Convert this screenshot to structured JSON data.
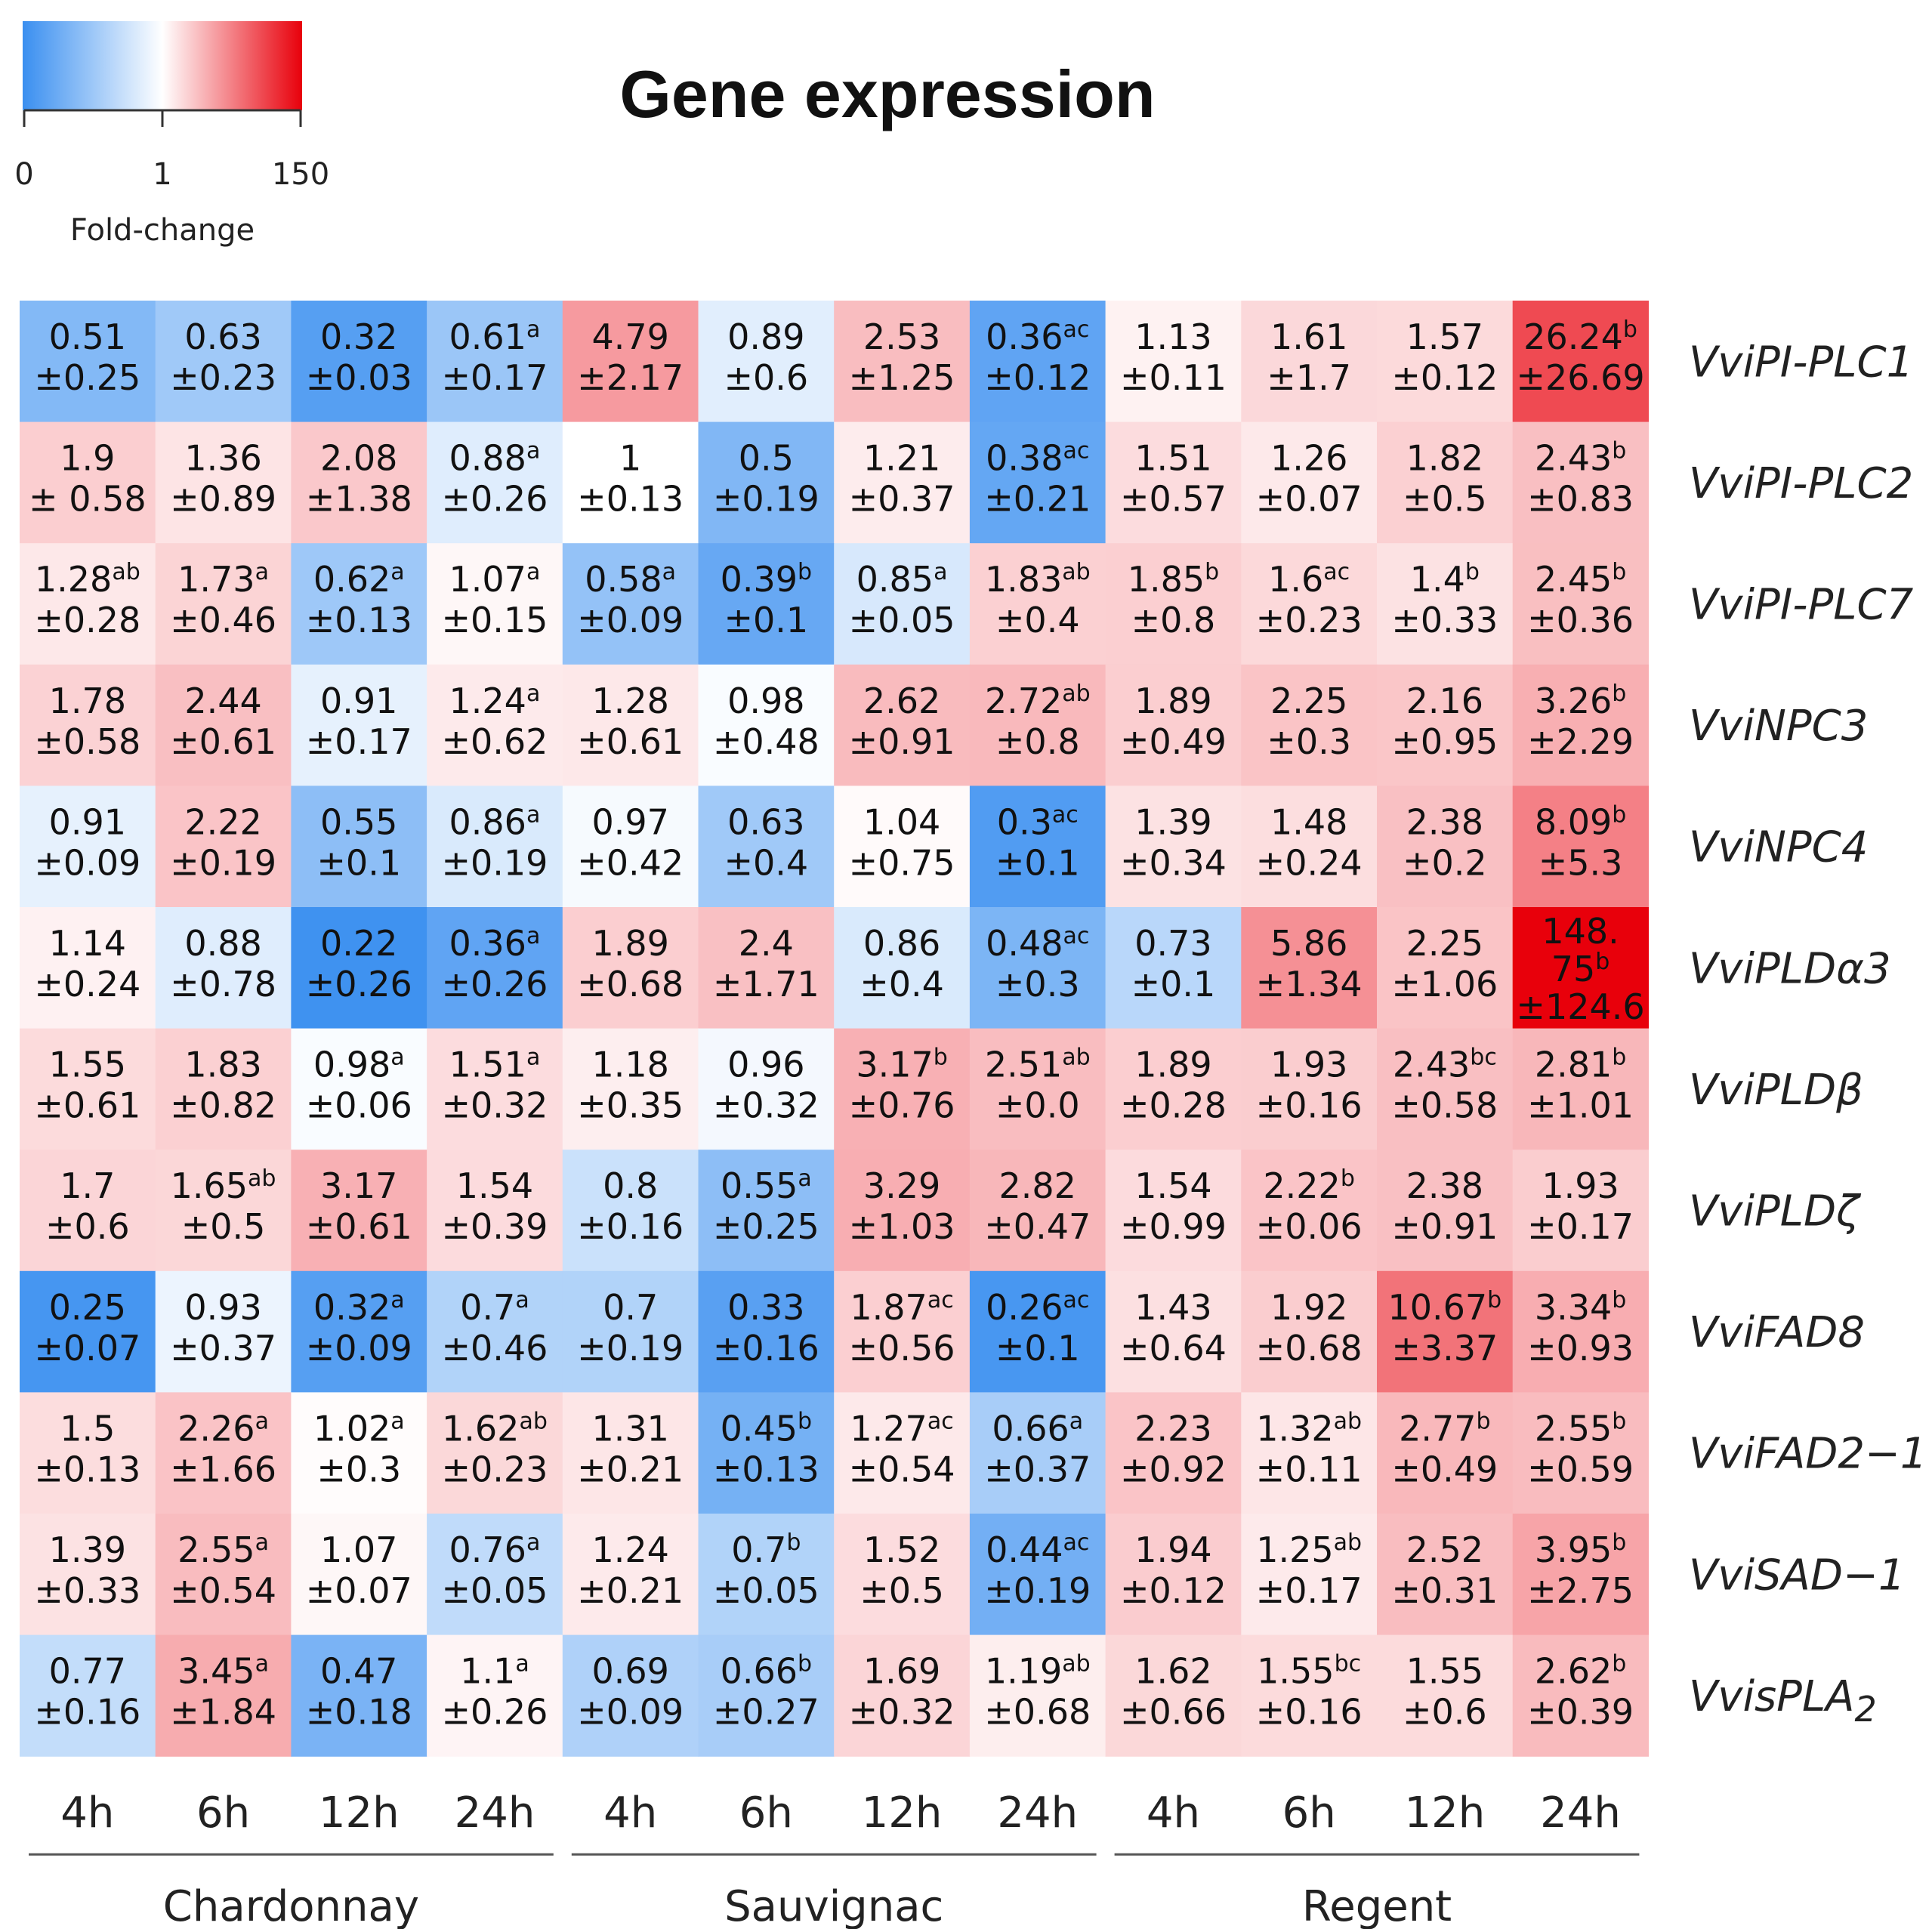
{
  "chart_data": {
    "type": "heatmap",
    "title": "Gene expression",
    "legend": {
      "title": "Fold-change",
      "ticks": [
        "0",
        "1",
        "150"
      ],
      "colors": {
        "low": "#3a8ff0",
        "mid": "#ffffff",
        "high": "#e8000b"
      }
    },
    "groups": [
      {
        "name": "Chardonnay",
        "columns": [
          "4h",
          "6h",
          "12h",
          "24h"
        ]
      },
      {
        "name": "Sauvignac",
        "columns": [
          "4h",
          "6h",
          "12h",
          "24h"
        ]
      },
      {
        "name": "Regent",
        "columns": [
          "4h",
          "6h",
          "12h",
          "24h"
        ]
      }
    ],
    "columns": [
      "4h",
      "6h",
      "12h",
      "24h",
      "4h",
      "6h",
      "12h",
      "24h",
      "4h",
      "6h",
      "12h",
      "24h"
    ],
    "rows": [
      {
        "gene": "VviPI-PLC1",
        "sub": "",
        "cells": [
          {
            "mean": "0.51",
            "sd": "±0.25",
            "sup": ""
          },
          {
            "mean": "0.63",
            "sd": "±0.23",
            "sup": ""
          },
          {
            "mean": "0.32",
            "sd": "±0.03",
            "sup": ""
          },
          {
            "mean": "0.61",
            "sd": "±0.17",
            "sup": "a"
          },
          {
            "mean": "4.79",
            "sd": "±2.17",
            "sup": ""
          },
          {
            "mean": "0.89",
            "sd": "±0.6",
            "sup": ""
          },
          {
            "mean": "2.53",
            "sd": "±1.25",
            "sup": ""
          },
          {
            "mean": "0.36",
            "sd": "±0.12",
            "sup": "ac"
          },
          {
            "mean": "1.13",
            "sd": "±0.11",
            "sup": ""
          },
          {
            "mean": "1.61",
            "sd": "±1.7",
            "sup": ""
          },
          {
            "mean": "1.57",
            "sd": "±0.12",
            "sup": ""
          },
          {
            "mean": "26.24",
            "sd": "±26.69",
            "sup": "b"
          }
        ]
      },
      {
        "gene": "VviPI-PLC2",
        "sub": "",
        "cells": [
          {
            "mean": "1.9",
            "sd": "± 0.58",
            "sup": ""
          },
          {
            "mean": "1.36",
            "sd": "±0.89",
            "sup": ""
          },
          {
            "mean": "2.08",
            "sd": "±1.38",
            "sup": ""
          },
          {
            "mean": "0.88",
            "sd": "±0.26",
            "sup": "a"
          },
          {
            "mean": "1",
            "sd": "±0.13",
            "sup": ""
          },
          {
            "mean": "0.5",
            "sd": "±0.19",
            "sup": ""
          },
          {
            "mean": "1.21",
            "sd": "±0.37",
            "sup": ""
          },
          {
            "mean": "0.38",
            "sd": "±0.21",
            "sup": "ac"
          },
          {
            "mean": "1.51",
            "sd": "±0.57",
            "sup": ""
          },
          {
            "mean": "1.26",
            "sd": "±0.07",
            "sup": ""
          },
          {
            "mean": "1.82",
            "sd": "±0.5",
            "sup": ""
          },
          {
            "mean": "2.43",
            "sd": "±0.83",
            "sup": "b"
          }
        ]
      },
      {
        "gene": "VviPI-PLC7",
        "sub": "",
        "cells": [
          {
            "mean": "1.28",
            "sd": "±0.28",
            "sup": "ab"
          },
          {
            "mean": "1.73",
            "sd": "±0.46",
            "sup": "a"
          },
          {
            "mean": "0.62",
            "sd": "±0.13",
            "sup": "a"
          },
          {
            "mean": "1.07",
            "sd": "±0.15",
            "sup": "a"
          },
          {
            "mean": "0.58",
            "sd": "±0.09",
            "sup": "a"
          },
          {
            "mean": "0.39",
            "sd": "±0.1",
            "sup": "b"
          },
          {
            "mean": "0.85",
            "sd": "±0.05",
            "sup": "a"
          },
          {
            "mean": "1.83",
            "sd": "±0.4",
            "sup": "ab"
          },
          {
            "mean": "1.85",
            "sd": "±0.8",
            "sup": "b"
          },
          {
            "mean": "1.6",
            "sd": "±0.23",
            "sup": "ac"
          },
          {
            "mean": "1.4",
            "sd": "±0.33",
            "sup": "b"
          },
          {
            "mean": "2.45",
            "sd": "±0.36",
            "sup": "b"
          }
        ]
      },
      {
        "gene": "VviNPC3",
        "sub": "",
        "cells": [
          {
            "mean": "1.78",
            "sd": "±0.58",
            "sup": ""
          },
          {
            "mean": "2.44",
            "sd": "±0.61",
            "sup": ""
          },
          {
            "mean": "0.91",
            "sd": "±0.17",
            "sup": ""
          },
          {
            "mean": "1.24",
            "sd": "±0.62",
            "sup": "a"
          },
          {
            "mean": "1.28",
            "sd": "±0.61",
            "sup": ""
          },
          {
            "mean": "0.98",
            "sd": "±0.48",
            "sup": ""
          },
          {
            "mean": "2.62",
            "sd": "±0.91",
            "sup": ""
          },
          {
            "mean": "2.72",
            "sd": "±0.8",
            "sup": "ab"
          },
          {
            "mean": "1.89",
            "sd": "±0.49",
            "sup": ""
          },
          {
            "mean": "2.25",
            "sd": "±0.3",
            "sup": ""
          },
          {
            "mean": "2.16",
            "sd": "±0.95",
            "sup": ""
          },
          {
            "mean": "3.26",
            "sd": "±2.29",
            "sup": "b"
          }
        ]
      },
      {
        "gene": "VviNPC4",
        "sub": "",
        "cells": [
          {
            "mean": "0.91",
            "sd": "±0.09",
            "sup": ""
          },
          {
            "mean": "2.22",
            "sd": "±0.19",
            "sup": ""
          },
          {
            "mean": "0.55",
            "sd": "±0.1",
            "sup": ""
          },
          {
            "mean": "0.86",
            "sd": "±0.19",
            "sup": "a"
          },
          {
            "mean": "0.97",
            "sd": "±0.42",
            "sup": ""
          },
          {
            "mean": "0.63",
            "sd": "±0.4",
            "sup": ""
          },
          {
            "mean": "1.04",
            "sd": "±0.75",
            "sup": ""
          },
          {
            "mean": "0.3",
            "sd": "±0.1",
            "sup": "ac"
          },
          {
            "mean": "1.39",
            "sd": "±0.34",
            "sup": ""
          },
          {
            "mean": "1.48",
            "sd": "±0.24",
            "sup": ""
          },
          {
            "mean": "2.38",
            "sd": "±0.2",
            "sup": ""
          },
          {
            "mean": "8.09",
            "sd": "±5.3",
            "sup": "b"
          }
        ]
      },
      {
        "gene": "VviPLDα3",
        "sub": "",
        "cells": [
          {
            "mean": "1.14",
            "sd": "±0.24",
            "sup": ""
          },
          {
            "mean": "0.88",
            "sd": "±0.78",
            "sup": ""
          },
          {
            "mean": "0.22",
            "sd": "±0.26",
            "sup": ""
          },
          {
            "mean": "0.36",
            "sd": "±0.26",
            "sup": "a"
          },
          {
            "mean": "1.89",
            "sd": "±0.68",
            "sup": ""
          },
          {
            "mean": "2.4",
            "sd": "±1.71",
            "sup": ""
          },
          {
            "mean": "0.86",
            "sd": "±0.4",
            "sup": ""
          },
          {
            "mean": "0.48",
            "sd": "±0.3",
            "sup": "ac"
          },
          {
            "mean": "0.73",
            "sd": "±0.1",
            "sup": ""
          },
          {
            "mean": "5.86",
            "sd": "±1.34",
            "sup": ""
          },
          {
            "mean": "2.25",
            "sd": "±1.06",
            "sup": ""
          },
          {
            "mean": "148.75",
            "sd": "±124.6",
            "sup": "b",
            "l1": "148.",
            "l2": "75",
            "l3": "±124.6"
          }
        ]
      },
      {
        "gene": "VviPLDβ",
        "sub": "",
        "cells": [
          {
            "mean": "1.55",
            "sd": "±0.61",
            "sup": ""
          },
          {
            "mean": "1.83",
            "sd": "±0.82",
            "sup": ""
          },
          {
            "mean": "0.98",
            "sd": "±0.06",
            "sup": "a"
          },
          {
            "mean": "1.51",
            "sd": "±0.32",
            "sup": "a"
          },
          {
            "mean": "1.18",
            "sd": "±0.35",
            "sup": ""
          },
          {
            "mean": "0.96",
            "sd": "±0.32",
            "sup": ""
          },
          {
            "mean": "3.17",
            "sd": "±0.76",
            "sup": "b"
          },
          {
            "mean": "2.51",
            "sd": "±0.0",
            "sup": "ab"
          },
          {
            "mean": "1.89",
            "sd": "±0.28",
            "sup": ""
          },
          {
            "mean": "1.93",
            "sd": "±0.16",
            "sup": ""
          },
          {
            "mean": "2.43",
            "sd": "±0.58",
            "sup": "bc"
          },
          {
            "mean": "2.81",
            "sd": "±1.01",
            "sup": "b"
          }
        ]
      },
      {
        "gene": "VviPLDζ",
        "sub": "",
        "cells": [
          {
            "mean": "1.7",
            "sd": "±0.6",
            "sup": ""
          },
          {
            "mean": "1.65",
            "sd": "±0.5",
            "sup": "ab"
          },
          {
            "mean": "3.17",
            "sd": "±0.61",
            "sup": ""
          },
          {
            "mean": "1.54",
            "sd": "±0.39",
            "sup": ""
          },
          {
            "mean": "0.8",
            "sd": "±0.16",
            "sup": ""
          },
          {
            "mean": "0.55",
            "sd": "±0.25",
            "sup": "a"
          },
          {
            "mean": "3.29",
            "sd": "±1.03",
            "sup": ""
          },
          {
            "mean": "2.82",
            "sd": "±0.47",
            "sup": ""
          },
          {
            "mean": "1.54",
            "sd": "±0.99",
            "sup": ""
          },
          {
            "mean": "2.22",
            "sd": "±0.06",
            "sup": "b"
          },
          {
            "mean": "2.38",
            "sd": "±0.91",
            "sup": ""
          },
          {
            "mean": "1.93",
            "sd": "±0.17",
            "sup": ""
          }
        ]
      },
      {
        "gene": "VviFAD8",
        "sub": "",
        "cells": [
          {
            "mean": "0.25",
            "sd": "±0.07",
            "sup": ""
          },
          {
            "mean": "0.93",
            "sd": "±0.37",
            "sup": ""
          },
          {
            "mean": "0.32",
            "sd": "±0.09",
            "sup": "a"
          },
          {
            "mean": "0.7",
            "sd": "±0.46",
            "sup": "a"
          },
          {
            "mean": "0.7",
            "sd": "±0.19",
            "sup": ""
          },
          {
            "mean": "0.33",
            "sd": "±0.16",
            "sup": ""
          },
          {
            "mean": "1.87",
            "sd": "±0.56",
            "sup": "ac"
          },
          {
            "mean": "0.26",
            "sd": "±0.1",
            "sup": "ac"
          },
          {
            "mean": "1.43",
            "sd": "±0.64",
            "sup": ""
          },
          {
            "mean": "1.92",
            "sd": "±0.68",
            "sup": ""
          },
          {
            "mean": "10.67",
            "sd": "±3.37",
            "sup": "b"
          },
          {
            "mean": "3.34",
            "sd": "±0.93",
            "sup": "b"
          }
        ]
      },
      {
        "gene": "VviFAD2−1",
        "sub": "",
        "cells": [
          {
            "mean": "1.5",
            "sd": "±0.13",
            "sup": ""
          },
          {
            "mean": "2.26",
            "sd": "±1.66",
            "sup": "a"
          },
          {
            "mean": "1.02",
            "sd": "±0.3",
            "sup": "a"
          },
          {
            "mean": "1.62",
            "sd": "±0.23",
            "sup": "ab"
          },
          {
            "mean": "1.31",
            "sd": "±0.21",
            "sup": ""
          },
          {
            "mean": "0.45",
            "sd": "±0.13",
            "sup": "b"
          },
          {
            "mean": "1.27",
            "sd": "±0.54",
            "sup": "ac"
          },
          {
            "mean": "0.66",
            "sd": "±0.37",
            "sup": "a"
          },
          {
            "mean": "2.23",
            "sd": "±0.92",
            "sup": ""
          },
          {
            "mean": "1.32",
            "sd": "±0.11",
            "sup": "ab"
          },
          {
            "mean": "2.77",
            "sd": "±0.49",
            "sup": "b"
          },
          {
            "mean": "2.55",
            "sd": "±0.59",
            "sup": "b"
          }
        ]
      },
      {
        "gene": "VviSAD−1",
        "sub": "",
        "cells": [
          {
            "mean": "1.39",
            "sd": "±0.33",
            "sup": ""
          },
          {
            "mean": "2.55",
            "sd": "±0.54",
            "sup": "a"
          },
          {
            "mean": "1.07",
            "sd": "±0.07",
            "sup": ""
          },
          {
            "mean": "0.76",
            "sd": "±0.05",
            "sup": "a"
          },
          {
            "mean": "1.24",
            "sd": "±0.21",
            "sup": ""
          },
          {
            "mean": "0.7",
            "sd": "±0.05",
            "sup": "b"
          },
          {
            "mean": "1.52",
            "sd": "±0.5",
            "sup": ""
          },
          {
            "mean": "0.44",
            "sd": "±0.19",
            "sup": "ac"
          },
          {
            "mean": "1.94",
            "sd": "±0.12",
            "sup": ""
          },
          {
            "mean": "1.25",
            "sd": "±0.17",
            "sup": "ab"
          },
          {
            "mean": "2.52",
            "sd": "±0.31",
            "sup": ""
          },
          {
            "mean": "3.95",
            "sd": "±2.75",
            "sup": "b"
          }
        ]
      },
      {
        "gene": "VvisPLA",
        "sub": "2",
        "cells": [
          {
            "mean": "0.77",
            "sd": "±0.16",
            "sup": ""
          },
          {
            "mean": "3.45",
            "sd": "±1.84",
            "sup": "a"
          },
          {
            "mean": "0.47",
            "sd": "±0.18",
            "sup": ""
          },
          {
            "mean": "1.1",
            "sd": "±0.26",
            "sup": "a"
          },
          {
            "mean": "0.69",
            "sd": "±0.09",
            "sup": ""
          },
          {
            "mean": "0.66",
            "sd": "±0.27",
            "sup": "b"
          },
          {
            "mean": "1.69",
            "sd": "±0.32",
            "sup": ""
          },
          {
            "mean": "1.19",
            "sd": "±0.68",
            "sup": "ab"
          },
          {
            "mean": "1.62",
            "sd": "±0.66",
            "sup": ""
          },
          {
            "mean": "1.55",
            "sd": "±0.16",
            "sup": "bc"
          },
          {
            "mean": "1.55",
            "sd": "±0.6",
            "sup": ""
          },
          {
            "mean": "2.62",
            "sd": "±0.39",
            "sup": "b"
          }
        ]
      }
    ]
  }
}
